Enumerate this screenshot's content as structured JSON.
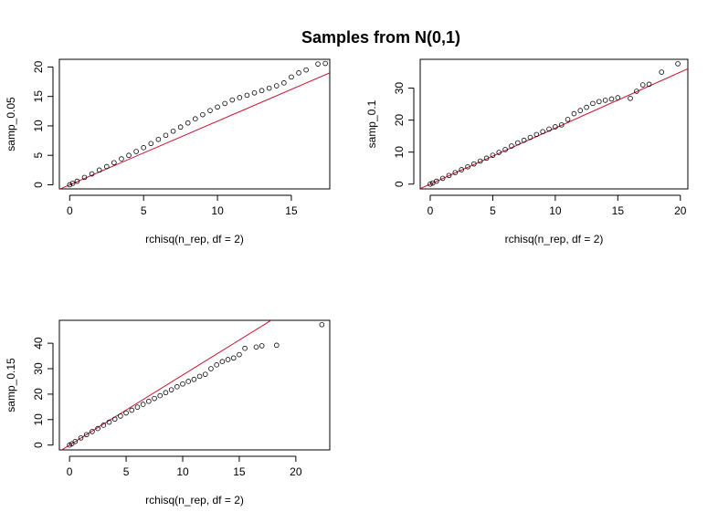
{
  "figure": {
    "title": "Samples from N(0,1)"
  },
  "chart_data": [
    {
      "type": "scatter",
      "xlabel": "rchisq(n_rep, df = 2)",
      "ylabel": "samp_0.05",
      "xlim": [
        -0.7,
        17.6
      ],
      "ylim": [
        -0.7,
        21.3
      ],
      "xticks": [
        0,
        5,
        10,
        15
      ],
      "yticks": [
        0,
        5,
        10,
        15,
        20
      ],
      "reference_line": {
        "color": "#c8102e",
        "intercept": 0,
        "slope": 1.08
      },
      "points": [
        [
          0,
          0
        ],
        [
          0.2,
          0.25
        ],
        [
          0.5,
          0.6
        ],
        [
          1,
          1.25
        ],
        [
          1.5,
          1.85
        ],
        [
          2,
          2.5
        ],
        [
          2.5,
          3.1
        ],
        [
          3,
          3.75
        ],
        [
          3.5,
          4.4
        ],
        [
          4,
          5.0
        ],
        [
          4.5,
          5.65
        ],
        [
          5,
          6.3
        ],
        [
          5.5,
          7.0
        ],
        [
          6,
          7.7
        ],
        [
          6.5,
          8.4
        ],
        [
          7,
          9.1
        ],
        [
          7.5,
          9.8
        ],
        [
          8,
          10.5
        ],
        [
          8.5,
          11.2
        ],
        [
          9,
          11.9
        ],
        [
          9.5,
          12.6
        ],
        [
          10,
          13.2
        ],
        [
          10.5,
          13.8
        ],
        [
          11,
          14.4
        ],
        [
          11.5,
          14.8
        ],
        [
          12,
          15.2
        ],
        [
          12.5,
          15.6
        ],
        [
          13,
          16.0
        ],
        [
          13.5,
          16.4
        ],
        [
          14,
          16.8
        ],
        [
          14.5,
          17.3
        ],
        [
          15,
          18.3
        ],
        [
          15.5,
          19.0
        ],
        [
          16,
          19.5
        ],
        [
          16.8,
          20.5
        ],
        [
          17.3,
          20.6
        ]
      ]
    },
    {
      "type": "scatter",
      "xlabel": "rchisq(n_rep, df = 2)",
      "ylabel": "samp_0.1",
      "xlim": [
        -0.8,
        20.6
      ],
      "ylim": [
        -1.5,
        39.0
      ],
      "xticks": [
        0,
        5,
        10,
        15,
        20
      ],
      "yticks": [
        0,
        10,
        20,
        30
      ],
      "reference_line": {
        "color": "#c8102e",
        "intercept": 0,
        "slope": 1.75
      },
      "points": [
        [
          0,
          0
        ],
        [
          0.2,
          0.35
        ],
        [
          0.5,
          0.9
        ],
        [
          1,
          1.8
        ],
        [
          1.5,
          2.7
        ],
        [
          2,
          3.6
        ],
        [
          2.5,
          4.5
        ],
        [
          3,
          5.4
        ],
        [
          3.5,
          6.3
        ],
        [
          4,
          7.2
        ],
        [
          4.5,
          8.1
        ],
        [
          5,
          9.0
        ],
        [
          5.5,
          9.9
        ],
        [
          6,
          10.8
        ],
        [
          6.5,
          11.9
        ],
        [
          7,
          12.9
        ],
        [
          7.5,
          13.7
        ],
        [
          8,
          14.6
        ],
        [
          8.5,
          15.5
        ],
        [
          9,
          16.4
        ],
        [
          9.5,
          17.2
        ],
        [
          10,
          17.9
        ],
        [
          10.5,
          18.5
        ],
        [
          11,
          20.2
        ],
        [
          11.5,
          22.0
        ],
        [
          12,
          23.0
        ],
        [
          12.5,
          24.0
        ],
        [
          13,
          25.2
        ],
        [
          13.5,
          25.8
        ],
        [
          14,
          26.2
        ],
        [
          14.5,
          26.6
        ],
        [
          15,
          27.0
        ],
        [
          16,
          26.8
        ],
        [
          16.5,
          29.0
        ],
        [
          17,
          31.0
        ],
        [
          17.5,
          31.2
        ],
        [
          18.5,
          35.0
        ],
        [
          19.8,
          37.6
        ]
      ]
    },
    {
      "type": "scatter",
      "xlabel": "rchisq(n_rep, df = 2)",
      "ylabel": "samp_0.15",
      "xlim": [
        -0.9,
        23.0
      ],
      "ylim": [
        -1.9,
        49.0
      ],
      "xticks": [
        0,
        5,
        10,
        15,
        20
      ],
      "yticks": [
        0,
        10,
        20,
        30,
        40
      ],
      "reference_line": {
        "color": "#c8102e",
        "intercept": 0,
        "slope": 2.75
      },
      "points": [
        [
          0,
          0
        ],
        [
          0.2,
          0.5
        ],
        [
          0.5,
          1.4
        ],
        [
          1,
          2.8
        ],
        [
          1.5,
          4.1
        ],
        [
          2,
          5.3
        ],
        [
          2.5,
          6.5
        ],
        [
          3,
          7.8
        ],
        [
          3.5,
          9.0
        ],
        [
          4,
          10.2
        ],
        [
          4.5,
          11.4
        ],
        [
          5,
          12.6
        ],
        [
          5.5,
          13.7
        ],
        [
          6,
          14.9
        ],
        [
          6.5,
          16.0
        ],
        [
          7,
          17.2
        ],
        [
          7.5,
          18.3
        ],
        [
          8,
          19.4
        ],
        [
          8.5,
          20.6
        ],
        [
          9,
          21.7
        ],
        [
          9.5,
          22.9
        ],
        [
          10,
          24.0
        ],
        [
          10.5,
          25.0
        ],
        [
          11,
          25.8
        ],
        [
          11.5,
          27.0
        ],
        [
          12,
          27.8
        ],
        [
          12.5,
          30.0
        ],
        [
          13,
          31.5
        ],
        [
          13.5,
          32.8
        ],
        [
          14,
          33.6
        ],
        [
          14.5,
          34.2
        ],
        [
          15,
          35.5
        ],
        [
          15.5,
          38.0
        ],
        [
          16.5,
          38.5
        ],
        [
          17,
          39.0
        ],
        [
          18.3,
          39.2
        ],
        [
          22.3,
          47.3
        ]
      ]
    }
  ]
}
